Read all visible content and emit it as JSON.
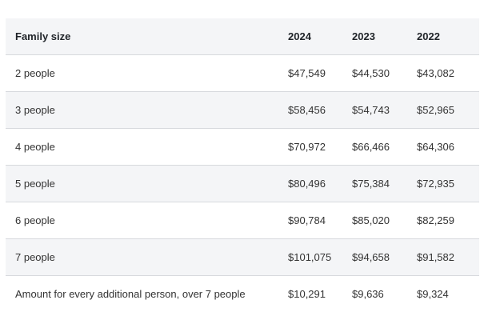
{
  "table": {
    "headers": {
      "family_size": "Family size",
      "y2024": "2024",
      "y2023": "2023",
      "y2022": "2022"
    },
    "rows": [
      {
        "label": "2 people",
        "y2024": "$47,549",
        "y2023": "$44,530",
        "y2022": "$43,082"
      },
      {
        "label": "3 people",
        "y2024": "$58,456",
        "y2023": "$54,743",
        "y2022": "$52,965"
      },
      {
        "label": "4 people",
        "y2024": "$70,972",
        "y2023": "$66,466",
        "y2022": "$64,306"
      },
      {
        "label": "5 people",
        "y2024": "$80,496",
        "y2023": "$75,384",
        "y2022": "$72,935"
      },
      {
        "label": "6 people",
        "y2024": "$90,784",
        "y2023": "$85,020",
        "y2022": "$82,259"
      },
      {
        "label": "7 people",
        "y2024": "$101,075",
        "y2023": "$94,658",
        "y2022": "$91,582"
      },
      {
        "label": "Amount for every additional person, over 7 people",
        "y2024": "$10,291",
        "y2023": "$9,636",
        "y2022": "$9,324"
      }
    ]
  },
  "colors": {
    "header_bg": "#f4f5f7",
    "stripe_bg": "#f4f5f7",
    "border": "#d7d9dd",
    "text": "#222222"
  }
}
